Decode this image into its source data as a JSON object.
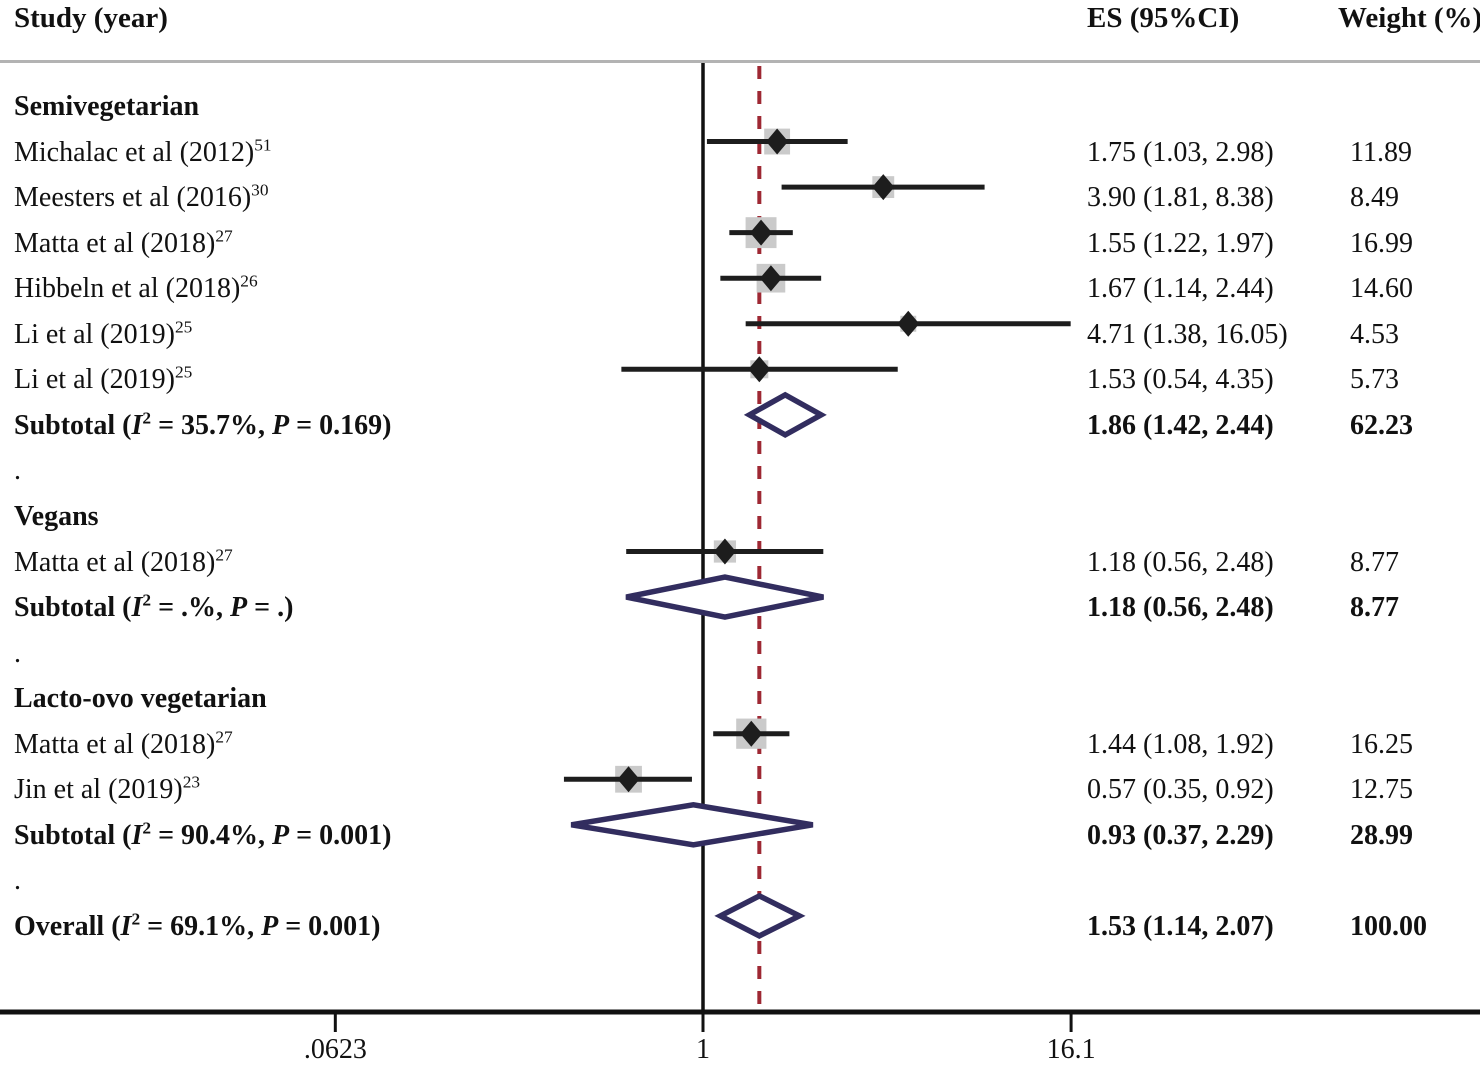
{
  "header": {
    "study": "Study (year)",
    "es": "ES (95%CI)",
    "weight": "Weight (%)"
  },
  "colors": {
    "text": "#111111",
    "ci_line": "#1d1d1d",
    "point_marker": "#1d1d1d",
    "weight_box": "#cacaca",
    "pooled_diamond": "#322d5f",
    "ref_line": "#9e2833",
    "axis": "#111111",
    "header_rule": "#b3b3b3"
  },
  "chart_data": {
    "type": "forest",
    "x_axis": {
      "scale": "log",
      "null_line_value": 1,
      "ref_line_value": 1.53,
      "ticks": [
        {
          "value": 0.0623,
          "label": ".0623"
        },
        {
          "value": 1,
          "label": "1"
        },
        {
          "value": 16.1,
          "label": "16.1"
        }
      ]
    },
    "rows": [
      {
        "type": "group",
        "parts": [
          {
            "t": "Semivegetarian"
          }
        ]
      },
      {
        "type": "study",
        "parts": [
          {
            "t": "Michalac et al (2012)"
          },
          {
            "t": "51",
            "style": "sup"
          }
        ],
        "es": 1.75,
        "ci_low": 1.03,
        "ci_high": 2.98,
        "es_text": "1.75 (1.03, 2.98)",
        "weight": 11.89,
        "weight_text": "11.89"
      },
      {
        "type": "study",
        "parts": [
          {
            "t": "Meesters et al (2016)"
          },
          {
            "t": "30",
            "style": "sup"
          }
        ],
        "es": 3.9,
        "ci_low": 1.81,
        "ci_high": 8.38,
        "es_text": "3.90 (1.81, 8.38)",
        "weight": 8.49,
        "weight_text": "8.49"
      },
      {
        "type": "study",
        "parts": [
          {
            "t": "Matta et al (2018)"
          },
          {
            "t": "27",
            "style": "sup"
          }
        ],
        "es": 1.55,
        "ci_low": 1.22,
        "ci_high": 1.97,
        "es_text": "1.55 (1.22, 1.97)",
        "weight": 16.99,
        "weight_text": "16.99"
      },
      {
        "type": "study",
        "parts": [
          {
            "t": "Hibbeln et al (2018)"
          },
          {
            "t": "26",
            "style": "sup"
          }
        ],
        "es": 1.67,
        "ci_low": 1.14,
        "ci_high": 2.44,
        "es_text": "1.67 (1.14, 2.44)",
        "weight": 14.6,
        "weight_text": "14.60"
      },
      {
        "type": "study",
        "parts": [
          {
            "t": "Li et al (2019)"
          },
          {
            "t": "25",
            "style": "sup"
          }
        ],
        "es": 4.71,
        "ci_low": 1.38,
        "ci_high": 16.05,
        "es_text": "4.71 (1.38, 16.05)",
        "weight": 4.53,
        "weight_text": "4.53"
      },
      {
        "type": "study",
        "parts": [
          {
            "t": "Li et al (2019)"
          },
          {
            "t": "25",
            "style": "sup"
          }
        ],
        "es": 1.53,
        "ci_low": 0.54,
        "ci_high": 4.35,
        "es_text": "1.53 (0.54, 4.35)",
        "weight": 5.73,
        "weight_text": "5.73"
      },
      {
        "type": "subtotal",
        "parts": [
          {
            "t": "Subtotal  ("
          },
          {
            "t": "I",
            "style": "italic"
          },
          {
            "t": "2",
            "style": "sup"
          },
          {
            "t": " = 35.7%, "
          },
          {
            "t": "P",
            "style": "italic"
          },
          {
            "t": " = 0.169)"
          }
        ],
        "es": 1.86,
        "ci_low": 1.42,
        "ci_high": 2.44,
        "es_text": "1.86 (1.42, 2.44)",
        "weight_text": "62.23"
      },
      {
        "type": "dot",
        "parts": [
          {
            "t": "."
          }
        ]
      },
      {
        "type": "group",
        "parts": [
          {
            "t": "Vegans"
          }
        ]
      },
      {
        "type": "study",
        "parts": [
          {
            "t": "Matta et al (2018)"
          },
          {
            "t": "27",
            "style": "sup"
          }
        ],
        "es": 1.18,
        "ci_low": 0.56,
        "ci_high": 2.48,
        "es_text": "1.18 (0.56, 2.48)",
        "weight": 8.77,
        "weight_text": "8.77"
      },
      {
        "type": "subtotal",
        "parts": [
          {
            "t": "Subtotal  ("
          },
          {
            "t": "I",
            "style": "italic"
          },
          {
            "t": "2",
            "style": "sup"
          },
          {
            "t": " = .%, "
          },
          {
            "t": "P",
            "style": "italic"
          },
          {
            "t": " = .)"
          }
        ],
        "es": 1.18,
        "ci_low": 0.56,
        "ci_high": 2.48,
        "es_text": "1.18 (0.56, 2.48)",
        "weight_text": "8.77"
      },
      {
        "type": "dot",
        "parts": [
          {
            "t": "."
          }
        ]
      },
      {
        "type": "group",
        "parts": [
          {
            "t": "Lacto-ovo vegetarian"
          }
        ]
      },
      {
        "type": "study",
        "parts": [
          {
            "t": "Matta et al (2018)"
          },
          {
            "t": "27",
            "style": "sup"
          }
        ],
        "es": 1.44,
        "ci_low": 1.08,
        "ci_high": 1.92,
        "es_text": "1.44 (1.08, 1.92)",
        "weight": 16.25,
        "weight_text": "16.25"
      },
      {
        "type": "study",
        "parts": [
          {
            "t": "Jin et al (2019)"
          },
          {
            "t": "23",
            "style": "sup"
          }
        ],
        "es": 0.57,
        "ci_low": 0.35,
        "ci_high": 0.92,
        "es_text": "0.57 (0.35, 0.92)",
        "weight": 12.75,
        "weight_text": "12.75"
      },
      {
        "type": "subtotal",
        "parts": [
          {
            "t": "Subtotal  ("
          },
          {
            "t": "I",
            "style": "italic"
          },
          {
            "t": "2",
            "style": "sup"
          },
          {
            "t": " = 90.4%, "
          },
          {
            "t": "P",
            "style": "italic"
          },
          {
            "t": " = 0.001)"
          }
        ],
        "es": 0.93,
        "ci_low": 0.37,
        "ci_high": 2.29,
        "es_text": "0.93 (0.37, 2.29)",
        "weight_text": "28.99"
      },
      {
        "type": "dot",
        "parts": [
          {
            "t": "."
          }
        ]
      },
      {
        "type": "overall",
        "parts": [
          {
            "t": "Overall  ("
          },
          {
            "t": "I",
            "style": "italic"
          },
          {
            "t": "2",
            "style": "sup"
          },
          {
            "t": " = 69.1%, "
          },
          {
            "t": "P",
            "style": "italic"
          },
          {
            "t": " = 0.001)"
          }
        ],
        "es": 1.53,
        "ci_low": 1.14,
        "ci_high": 2.07,
        "es_text": "1.53 (1.14, 2.07)",
        "weight_text": "100.00"
      }
    ]
  }
}
